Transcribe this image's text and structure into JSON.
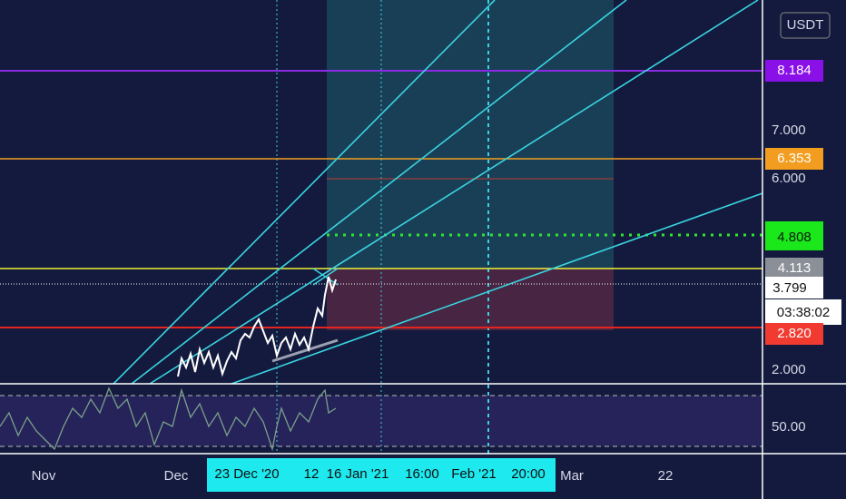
{
  "toolbar": {
    "currency": "USDT"
  },
  "price_axis": {
    "labels": [
      "7.000",
      "6.000",
      "2.000"
    ]
  },
  "rsi_axis": {
    "labels": [
      "50.00"
    ]
  },
  "price_tags": [
    "8.184",
    "6.353",
    "4.808",
    "4.113",
    "3.799",
    "03:38:02",
    "2.820"
  ],
  "time_axis": {
    "labels": [
      "Nov",
      "Dec",
      "23 Dec '20",
      "12",
      "16 Jan '21",
      "16:00",
      "Feb '21",
      "20:00",
      "Mar",
      "22"
    ]
  }
}
